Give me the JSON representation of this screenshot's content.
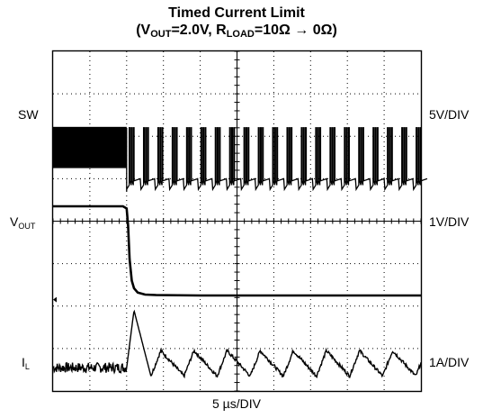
{
  "chart_data": {
    "type": "line",
    "title": {
      "line1": "Timed Current Limit",
      "line2": {
        "prefix": "(V",
        "vout_sub": "OUT",
        "vout_value": "=2.0V, R",
        "rload_sub": "LOAD",
        "suffix": "=10Ω → 0Ω)"
      }
    },
    "xlabel": "5 µs/DIV",
    "grid": {
      "x_divisions": 10,
      "y_divisions": 8,
      "minor_ticks_per_division": 5,
      "style": "dotted"
    },
    "channels": [
      {
        "label": "SW",
        "label_sub": "",
        "scale": "5V/DIV"
      },
      {
        "label": "V",
        "label_sub": "OUT",
        "scale": "1V/DIV"
      },
      {
        "label": "I",
        "label_sub": "L",
        "scale": "1A/DIV"
      }
    ],
    "x_unit": "µs",
    "traces": {
      "sw": {
        "high_div": 6.2,
        "low_div": 4.8,
        "fast_switching_until_us": 10,
        "pulse_period_us": 1.95,
        "pulses_per_group": 3
      },
      "vout": {
        "x": [
          0,
          9.5,
          10.0,
          10.2,
          10.4,
          10.7,
          11.0,
          11.5,
          12.5,
          14.0,
          20.0,
          50.0
        ],
        "y": [
          4.35,
          4.35,
          4.3,
          3.9,
          3.1,
          2.6,
          2.42,
          2.32,
          2.27,
          2.26,
          2.25,
          2.25
        ]
      },
      "il": {
        "baseline_div": 0.55,
        "noise_div": 0.12,
        "peak": {
          "x": 11.0,
          "y": 1.9
        },
        "ripple_period_us": 4.5,
        "ripple_peak_div": 0.95,
        "ripple_trough_div": 0.35
      }
    }
  }
}
